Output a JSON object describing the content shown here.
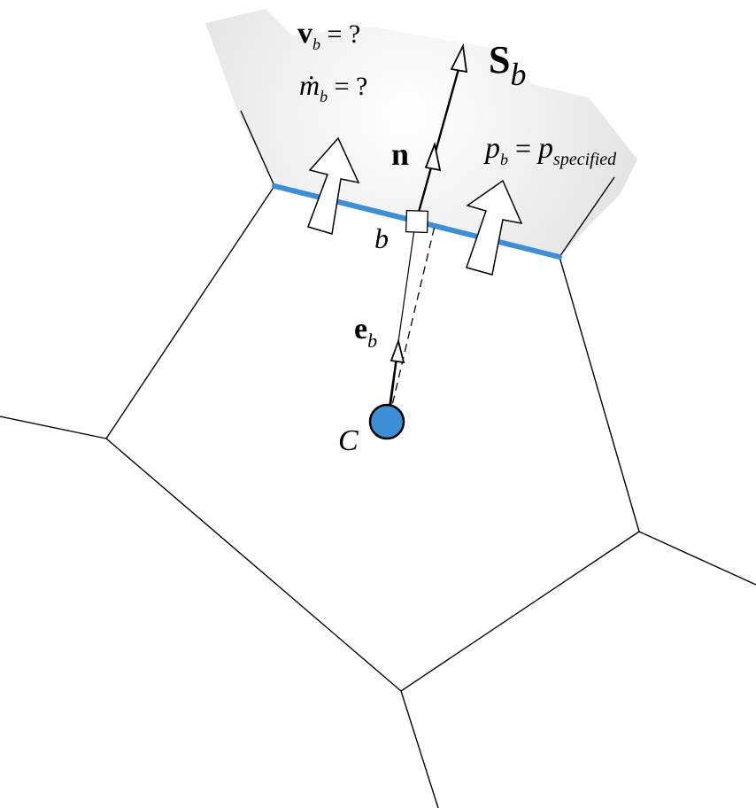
{
  "diagram": {
    "colors": {
      "boundary_face": "#3c8fd4",
      "cell_centroid": "#3c8fd4",
      "outside_region": "#e6e6e6",
      "lines": "#000000",
      "arrows_fill": "#ffffff"
    },
    "labels": {
      "vb": {
        "main": "v",
        "sub": "b",
        "rest": " = ?"
      },
      "mdot": {
        "main": "ṁ",
        "sub": "b",
        "rest": " = ?"
      },
      "sb": {
        "main": "S",
        "sub": "b"
      },
      "n": {
        "main": "n"
      },
      "pb": {
        "main": "p",
        "sub": "b",
        "eq": " = ",
        "rhs": "p",
        "rhs_sub": "specified"
      },
      "b": {
        "main": "b"
      },
      "eb": {
        "main": "e",
        "sub": "b"
      },
      "c": {
        "main": "C"
      }
    },
    "icons": {
      "flow_arrow": "block-arrow-up",
      "vector_arrow": "open-triangle-arrowhead",
      "face_center": "square-marker",
      "centroid": "filled-circle"
    }
  }
}
